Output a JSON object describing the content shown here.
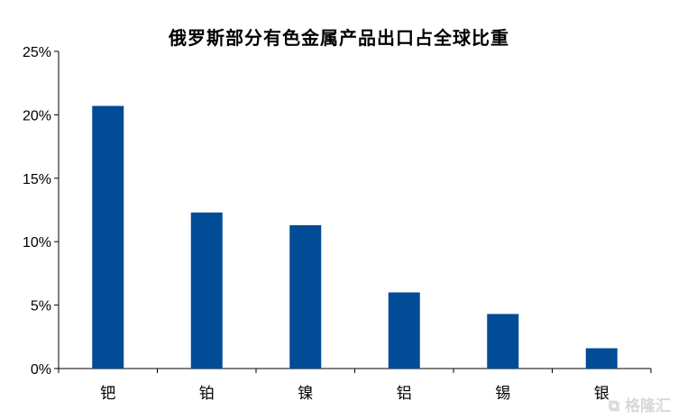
{
  "chart_data": {
    "type": "bar",
    "title": "俄罗斯部分有色金属产品出口占全球比重",
    "categories": [
      "钯",
      "铂",
      "镍",
      "铝",
      "锡",
      "银"
    ],
    "values": [
      20.7,
      12.3,
      11.3,
      6.0,
      4.3,
      1.6
    ],
    "xlabel": "",
    "ylabel": "",
    "ylim": [
      0,
      25
    ],
    "yticks": [
      0,
      5,
      10,
      15,
      20,
      25
    ],
    "ytick_labels": [
      "0%",
      "5%",
      "10%",
      "15%",
      "20%",
      "25%"
    ],
    "bar_color": "#004c97",
    "grid": false,
    "legend": "none"
  },
  "watermark": "格隆汇"
}
